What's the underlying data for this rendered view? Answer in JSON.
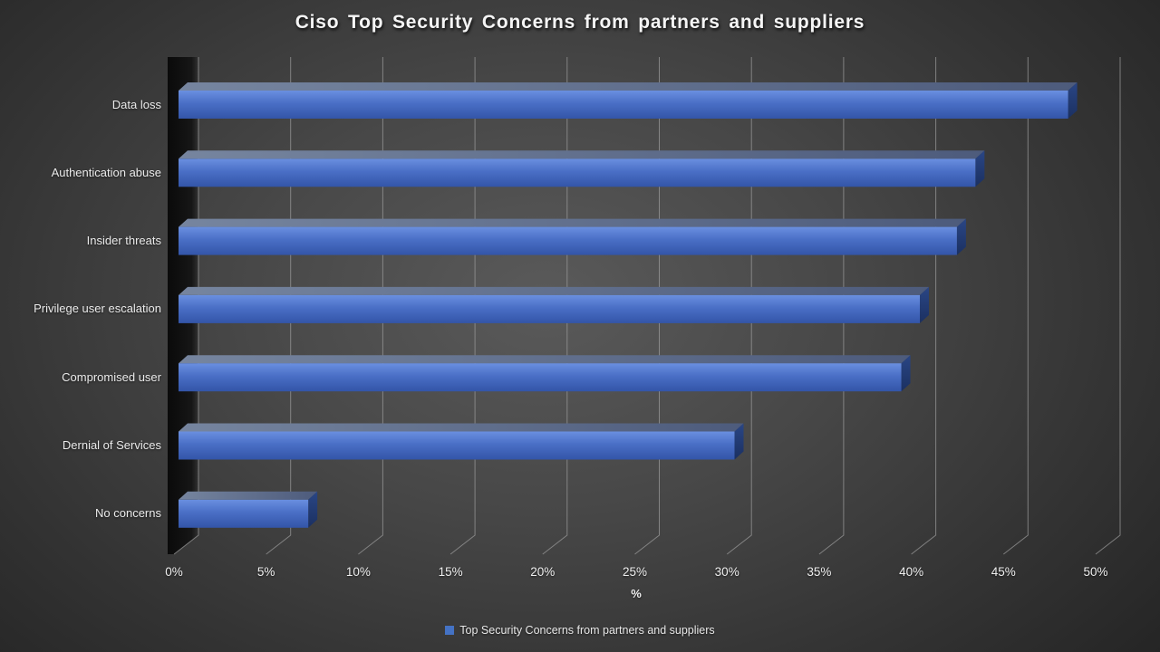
{
  "title": "Ciso Top Security Concerns from partners and suppliers",
  "x_axis": {
    "label": "%"
  },
  "legend": {
    "label": "Top Security Concerns from partners and suppliers",
    "swatch_color": "#4472c4"
  },
  "chart_data": {
    "type": "bar",
    "orientation": "horizontal",
    "style": "3d",
    "title": "Ciso Top Security Concerns from partners and suppliers",
    "categories": [
      "Data loss",
      "Authentication abuse",
      "Insider threats",
      "Privilege user escalation",
      "Compromised user",
      "Dernial of Services",
      "No concerns"
    ],
    "values": [
      48,
      43,
      42,
      40,
      39,
      30,
      7
    ],
    "series": [
      {
        "name": "Top Security Concerns from partners and suppliers",
        "values": [
          48,
          43,
          42,
          40,
          39,
          30,
          7
        ]
      }
    ],
    "xlabel": "%",
    "xlim": [
      0,
      50
    ],
    "x_tick_step": 5,
    "x_ticks": [
      "0%",
      "5%",
      "10%",
      "15%",
      "20%",
      "25%",
      "30%",
      "35%",
      "40%",
      "45%",
      "50%"
    ],
    "grid": true,
    "legend_position": "bottom",
    "colors": {
      "bar_front_top": "#6a8fe0",
      "bar_front_mid": "#4a6fc6",
      "bar_front_bottom": "#3355a8",
      "bar_top_light": "#76859f",
      "bar_top_dark": "#4d5b7c",
      "bar_side_top": "#2a4685",
      "bar_side_bottom": "#1b3061",
      "gridline": "#9c9c9c",
      "wall_dark": "#0a0a0a",
      "wall_light": "#323232",
      "legend_swatch": "#4472c4",
      "background_center": "#5a5a5a",
      "background_edge": "#242424",
      "text": "#f0f0f0"
    }
  }
}
